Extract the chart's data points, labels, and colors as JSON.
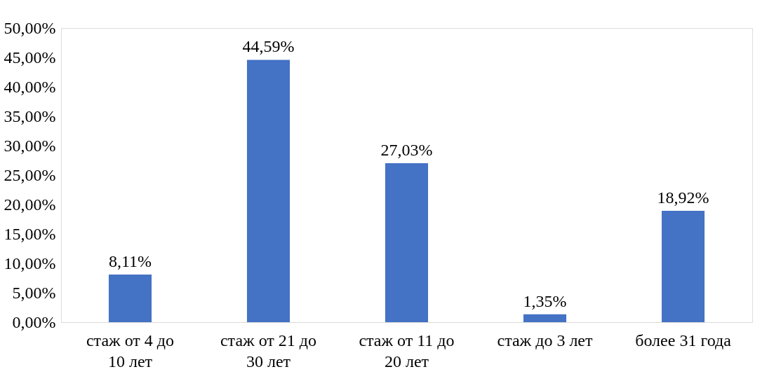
{
  "chart_data": {
    "type": "bar",
    "categories": [
      "стаж от 4 до 10 лет",
      "стаж от 21 до 30 лет",
      "стаж от 11 до 20 лет",
      "стаж до 3 лет",
      "более 31 года"
    ],
    "values": [
      8.11,
      44.59,
      27.03,
      1.35,
      18.92
    ],
    "value_labels": [
      "8,11%",
      "44,59%",
      "27,03%",
      "1,35%",
      "18,92%"
    ],
    "color": "#4472c4",
    "ylim": [
      0,
      50
    ],
    "yticks": [
      {
        "value": 0,
        "label": "0,00%"
      },
      {
        "value": 5,
        "label": "5,00%"
      },
      {
        "value": 10,
        "label": "10,00%"
      },
      {
        "value": 15,
        "label": "15,00%"
      },
      {
        "value": 20,
        "label": "20,00%"
      },
      {
        "value": 25,
        "label": "25,00%"
      },
      {
        "value": 30,
        "label": "30,00%"
      },
      {
        "value": 35,
        "label": "35,00%"
      },
      {
        "value": 40,
        "label": "40,00%"
      },
      {
        "value": 45,
        "label": "45,00%"
      },
      {
        "value": 50,
        "label": "50,00%"
      }
    ],
    "grid": false
  }
}
